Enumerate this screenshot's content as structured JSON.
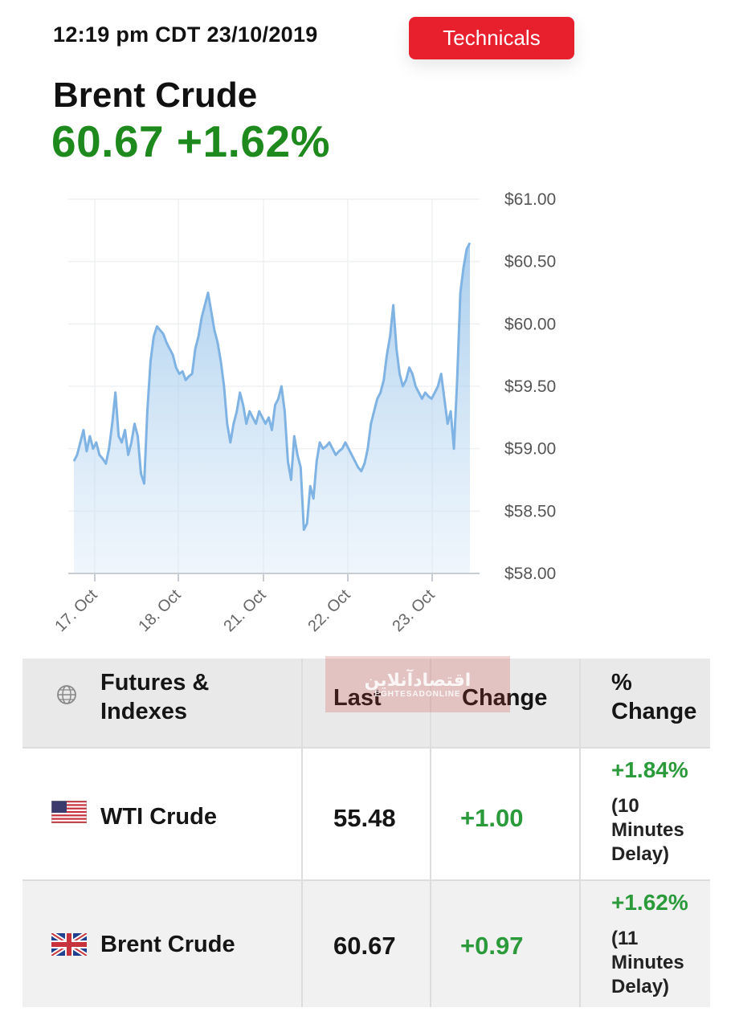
{
  "header": {
    "timestamp": "12:19 pm CDT 23/10/2019",
    "technicals_label": "Technicals",
    "instrument": "Brent Crude",
    "price_change": "60.67 +1.62%"
  },
  "colors": {
    "accent_red": "#e8202e",
    "positive_green": "#1e8a1e",
    "line_blue": "#7fb3e3"
  },
  "chart_data": {
    "type": "area",
    "x_tick_labels": [
      "17. Oct",
      "18. Oct",
      "21. Oct",
      "22. Oct",
      "23. Oct"
    ],
    "y_tick_labels": [
      "$61.00",
      "$60.50",
      "$60.00",
      "$59.50",
      "$59.00",
      "$58.50",
      "$58.00"
    ],
    "ylim": [
      58.0,
      61.0
    ],
    "grid": true,
    "y_axis_position": "right",
    "series": [
      {
        "values": [
          58.9,
          58.95,
          59.05,
          59.15,
          58.98,
          59.1,
          59.0,
          59.05,
          58.95,
          58.92,
          58.88,
          59.0,
          59.2,
          59.45,
          59.1,
          59.05,
          59.15,
          58.95,
          59.05,
          59.2,
          59.1,
          58.8,
          58.72,
          59.3,
          59.7,
          59.9,
          59.98,
          59.95,
          59.92,
          59.85,
          59.8,
          59.75,
          59.65,
          59.6,
          59.62,
          59.55,
          59.58,
          59.6,
          59.8,
          59.9,
          60.05,
          60.15,
          60.25,
          60.1,
          59.95,
          59.85,
          59.7,
          59.5,
          59.2,
          59.05,
          59.2,
          59.3,
          59.45,
          59.35,
          59.2,
          59.3,
          59.25,
          59.2,
          59.3,
          59.25,
          59.2,
          59.25,
          59.15,
          59.35,
          59.4,
          59.5,
          59.3,
          58.9,
          58.75,
          59.1,
          58.95,
          58.85,
          58.35,
          58.4,
          58.7,
          58.6,
          58.9,
          59.05,
          59.0,
          59.02,
          59.05,
          59.0,
          58.95,
          58.98,
          59.0,
          59.05,
          59.0,
          58.95,
          58.9,
          58.85,
          58.82,
          58.88,
          59.0,
          59.2,
          59.3,
          59.4,
          59.45,
          59.55,
          59.75,
          59.9,
          60.15,
          59.8,
          59.6,
          59.5,
          59.55,
          59.65,
          59.6,
          59.5,
          59.45,
          59.4,
          59.45,
          59.42,
          59.4,
          59.45,
          59.5,
          59.6,
          59.4,
          59.2,
          59.3,
          59.0,
          59.55,
          60.25,
          60.45,
          60.6,
          60.65
        ]
      }
    ]
  },
  "table": {
    "headers": {
      "col1": "Futures & Indexes",
      "col1_line1": "Futures &",
      "col1_line2": "Indexes",
      "col2": "Last",
      "col3": "Change",
      "col4_line1": "%",
      "col4_line2": "Change"
    },
    "rows": [
      {
        "flag": "us-flag-icon",
        "name": "WTI Crude",
        "last": "55.48",
        "change": "+1.00",
        "pct_change": "+1.84%",
        "delay_line1": "(10",
        "delay_line2": "Minutes",
        "delay_line3": "Delay)"
      },
      {
        "flag": "uk-flag-icon",
        "name": "Brent Crude",
        "last": "60.67",
        "change": "+0.97",
        "pct_change": "+1.62%",
        "delay_line1": "(11",
        "delay_line2": "Minutes",
        "delay_line3": "Delay)"
      }
    ]
  },
  "watermark": {
    "line1": "اقتصادآنلاین",
    "line2": "EGHTESADONLINE"
  }
}
